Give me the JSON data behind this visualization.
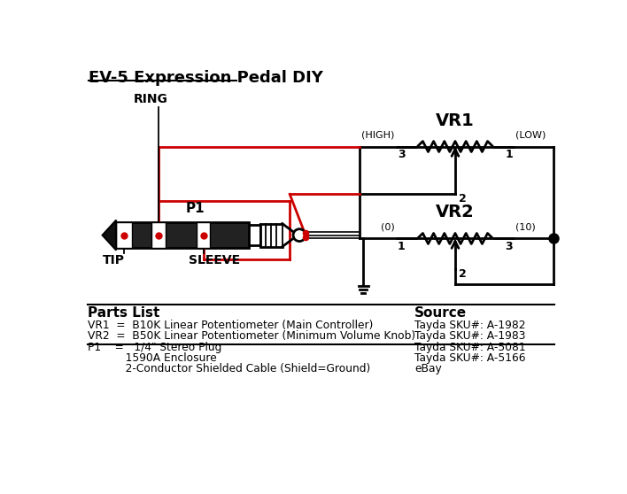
{
  "title": "EV-5 Expression Pedal DIY",
  "bg_color": "#ffffff",
  "lc": "#000000",
  "rc": "#cc0000",
  "parts": [
    [
      "VR1  =  B10K Linear Potentiometer (Main Controller)",
      "Tayda SKU#: A-1982"
    ],
    [
      "VR2  =  B50K Linear Potentiometer (Minimum Volume Knob)",
      "Tayda SKU#: A-1983"
    ],
    [
      "P1    =   1/4\" Stereo Plug",
      "Tayda SKU#: A-5081"
    ],
    [
      "           1590A Enclosure",
      "Tayda SKU#: A-5166"
    ],
    [
      "           2-Conductor Shielded Cable (Shield=Ground)",
      "eBay"
    ]
  ],
  "vr1_label": "VR1",
  "vr2_label": "VR2",
  "p1_label": "P1",
  "ring_label": "RING",
  "tip_label": "TIP",
  "sleeve_label": "SLEEVE",
  "parts_header": "Parts List",
  "source_header": "Source"
}
